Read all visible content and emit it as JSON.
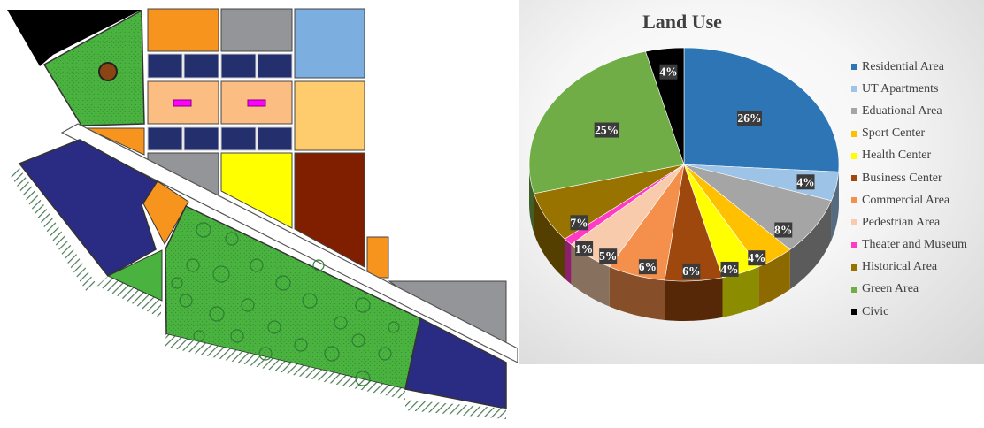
{
  "map": {
    "colors": {
      "civic": "#000000",
      "green": "#4ab340",
      "orange": "#f7941d",
      "gray": "#939598",
      "light_blue": "#7daee0",
      "navy": "#23306d",
      "light_orange": "#fbbd82",
      "yellow_orange": "#fecb6d",
      "yellow": "#ffff00",
      "brown": "#7f1f00",
      "dark_blue": "#2a2c84",
      "magenta": "#ff00ff",
      "tree": "#2e7d32",
      "hatch": "#4d7a57",
      "road": "#ffffff",
      "circle": "#8b4513"
    }
  },
  "chart_data": {
    "type": "pie",
    "title": "Land Use",
    "legend_position": "right",
    "categories": [
      "Residential Area",
      "UT Apartments",
      "Eduational Area",
      "Sport Center",
      "Health Center",
      "Business Center",
      "Commercial Area",
      "Pedestrian Area",
      "Theater and Museum",
      "Historical Area",
      "Green Area",
      "Civic"
    ],
    "values": [
      26,
      4,
      8,
      4,
      4,
      6,
      6,
      5,
      1,
      7,
      25,
      4
    ],
    "labels": [
      "26%",
      "4%",
      "8%",
      "4%",
      "4%",
      "6%",
      "6%",
      "5%",
      "1%",
      "7%",
      "25%",
      "4%"
    ],
    "colors": [
      "#2e75b6",
      "#9dc3e6",
      "#a5a5a5",
      "#ffc000",
      "#ffff00",
      "#9e480e",
      "#f4904b",
      "#f8cbad",
      "#ff3bc5",
      "#997300",
      "#70ad47",
      "#000000"
    ]
  }
}
